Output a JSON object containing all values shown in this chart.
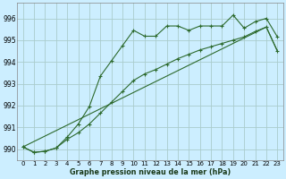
{
  "title": "Graphe pression niveau de la mer (hPa)",
  "background_color": "#cceeff",
  "grid_color": "#aacccc",
  "line_color": "#2d6a2d",
  "xlim": [
    -0.5,
    23.5
  ],
  "ylim": [
    989.5,
    996.7
  ],
  "yticks": [
    990,
    991,
    992,
    993,
    994,
    995,
    996
  ],
  "xticks": [
    0,
    1,
    2,
    3,
    4,
    5,
    6,
    7,
    8,
    9,
    10,
    11,
    12,
    13,
    14,
    15,
    16,
    17,
    18,
    19,
    20,
    21,
    22,
    23
  ],
  "line1_x": [
    0,
    1,
    2,
    3,
    4,
    5,
    6,
    7,
    8,
    9,
    10,
    11,
    12,
    13,
    14,
    15,
    16,
    17,
    18,
    19,
    20,
    21,
    22,
    23
  ],
  "line1_y": [
    990.1,
    989.85,
    989.9,
    990.05,
    990.55,
    991.15,
    991.95,
    993.35,
    994.05,
    994.75,
    995.45,
    995.18,
    995.18,
    995.65,
    995.65,
    995.45,
    995.65,
    995.65,
    995.65,
    996.15,
    995.55,
    995.85,
    996.0,
    995.15
  ],
  "line2_x": [
    0,
    1,
    2,
    3,
    4,
    5,
    6,
    7,
    8,
    9,
    10,
    11,
    12,
    13,
    14,
    15,
    16,
    17,
    18,
    19,
    20,
    21,
    22,
    23
  ],
  "line2_y": [
    990.1,
    989.85,
    989.9,
    990.05,
    990.45,
    990.75,
    991.15,
    991.65,
    992.15,
    992.65,
    993.15,
    993.45,
    993.65,
    993.9,
    994.15,
    994.35,
    994.55,
    994.7,
    994.85,
    995.0,
    995.15,
    995.4,
    995.6,
    994.5
  ],
  "line3_x": [
    0,
    22,
    23
  ],
  "line3_y": [
    990.1,
    995.6,
    994.5
  ]
}
